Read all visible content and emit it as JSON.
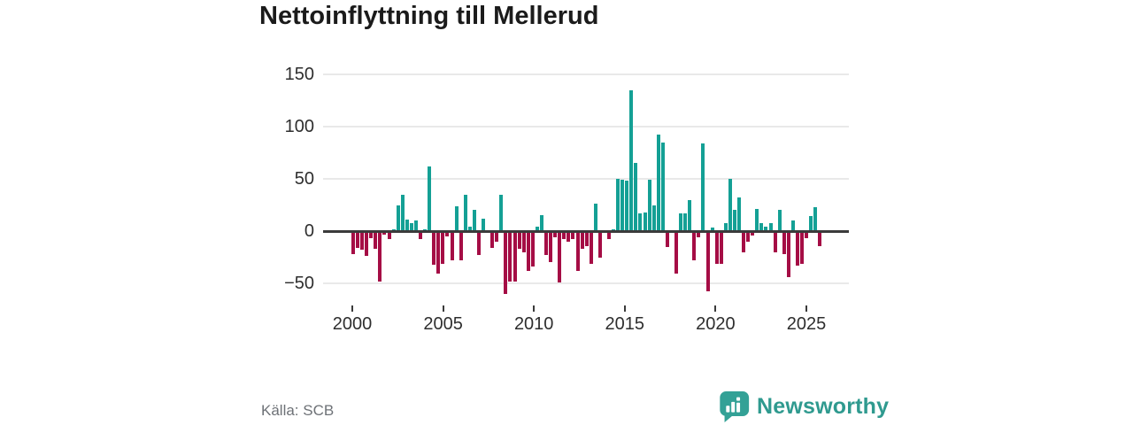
{
  "title": "Nettoinflyttning till Mellerud",
  "footer": {
    "source": "Källa: SCB"
  },
  "branding": {
    "name": "Newsworthy"
  },
  "style": {
    "positive_bar_color": "#14A095",
    "negative_bar_color": "#A50D45",
    "brand_teal": "#33A196",
    "grid_color": "#e9e9e9",
    "zero_line_color": "#3b3b3b"
  },
  "chart_data": {
    "type": "bar",
    "title": "Nettoinflyttning till Mellerud",
    "frequency": "quarterly",
    "start_period": "2000-Q1",
    "end_period": "2026-Q1",
    "unit": "persons (net migration per quarter)",
    "values": [
      -22,
      -16,
      -18,
      -24,
      -7,
      -17,
      -48,
      -3,
      -8,
      2,
      25,
      35,
      11,
      8,
      10,
      -8,
      2,
      62,
      -32,
      -41,
      -31,
      -5,
      -28,
      24,
      -28,
      35,
      4,
      20,
      -23,
      12,
      -2,
      -16,
      -10,
      35,
      -60,
      -48,
      -48,
      -17,
      -20,
      -38,
      -34,
      4,
      15,
      -23,
      -30,
      -6,
      -49,
      -8,
      -10,
      -8,
      -38,
      -17,
      -14,
      -31,
      26,
      -25,
      -2,
      -8,
      2,
      50,
      49,
      48,
      135,
      65,
      17,
      18,
      49,
      25,
      92,
      85,
      -15,
      -2,
      -41,
      17,
      17,
      30,
      -28,
      -6,
      84,
      -58,
      3,
      -31,
      -31,
      8,
      50,
      20,
      32,
      -20,
      -10,
      -4,
      21,
      8,
      4,
      8,
      -20,
      20,
      -22,
      -44,
      10,
      -33,
      -31,
      -7,
      14,
      23,
      -14
    ],
    "y_ticks": [
      150,
      100,
      50,
      0,
      -50
    ],
    "y_tick_labels": [
      "150",
      "100",
      "50",
      "0",
      "−50"
    ],
    "x_tick_labels": [
      "2000",
      "2005",
      "2010",
      "2015",
      "2020",
      "2025"
    ],
    "ylim": [
      -70,
      160
    ],
    "grid": "horizontal",
    "legend": "none",
    "zero_line": true,
    "colors": {
      "positive": "#14A095",
      "negative": "#A50D45"
    }
  }
}
